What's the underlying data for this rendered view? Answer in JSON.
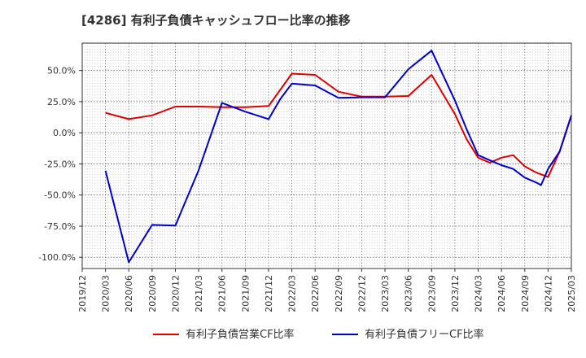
{
  "chart_data": {
    "type": "line",
    "title": "[4286]  有利子負債キャッシュフロー比率の推移",
    "x_ticks": [
      "2019/12",
      "2020/03",
      "2020/06",
      "2020/09",
      "2020/12",
      "2021/03",
      "2021/06",
      "2021/09",
      "2021/12",
      "2022/03",
      "2022/06",
      "2022/09",
      "2022/12",
      "2023/03",
      "2023/06",
      "2023/09",
      "2023/12",
      "2024/03",
      "2024/06",
      "2024/09",
      "2024/12",
      "2025/03"
    ],
    "y_ticks": [
      50,
      25,
      0,
      -25,
      -50,
      -75,
      -100
    ],
    "y_tick_labels": [
      "50.0%",
      "25.0%",
      "0.0%",
      "-25.0%",
      "-50.0%",
      "-75.0%",
      "-100.0%"
    ],
    "ylim": [
      -109,
      72
    ],
    "xlim": [
      0,
      21
    ],
    "grid": true,
    "legend_position": "bottom",
    "series": [
      {
        "name": "有利子負債営業CF比率",
        "color": "#e00000",
        "points": [
          [
            1,
            16
          ],
          [
            2,
            11
          ],
          [
            3,
            14
          ],
          [
            4,
            21
          ],
          [
            5,
            21
          ],
          [
            6,
            20.5
          ],
          [
            7,
            20.5
          ],
          [
            8,
            21.5
          ],
          [
            9,
            47.5
          ],
          [
            10,
            46.5
          ],
          [
            11,
            33
          ],
          [
            12,
            29
          ],
          [
            13,
            29
          ],
          [
            14,
            29.5
          ],
          [
            15,
            46.5
          ],
          [
            16,
            15
          ],
          [
            16.5,
            -5
          ],
          [
            17,
            -20
          ],
          [
            17.5,
            -24
          ],
          [
            18,
            -20
          ],
          [
            18.5,
            -18
          ],
          [
            19,
            -27
          ],
          [
            19.5,
            -32
          ],
          [
            20,
            -35.5
          ],
          [
            20.5,
            -15
          ],
          [
            21,
            14
          ]
        ]
      },
      {
        "name": "有利子負債フリーCF比率",
        "color": "#0000cc",
        "points": [
          [
            1,
            -30.5
          ],
          [
            2,
            -104
          ],
          [
            2.4,
            -92
          ],
          [
            2.7,
            -83
          ],
          [
            3,
            -74
          ],
          [
            4,
            -74.5
          ],
          [
            5,
            -30
          ],
          [
            6,
            24
          ],
          [
            7,
            17
          ],
          [
            8,
            11
          ],
          [
            8.5,
            27
          ],
          [
            9,
            39.5
          ],
          [
            10,
            38
          ],
          [
            11,
            28
          ],
          [
            12,
            28.5
          ],
          [
            13,
            28.5
          ],
          [
            14,
            51
          ],
          [
            15,
            66
          ],
          [
            16,
            26
          ],
          [
            16.5,
            3
          ],
          [
            17,
            -18
          ],
          [
            17.5,
            -22
          ],
          [
            18,
            -26
          ],
          [
            18.5,
            -29
          ],
          [
            19,
            -36
          ],
          [
            19.5,
            -40
          ],
          [
            19.7,
            -42
          ],
          [
            20,
            -29
          ],
          [
            20.5,
            -15
          ],
          [
            21,
            14
          ]
        ]
      }
    ]
  }
}
